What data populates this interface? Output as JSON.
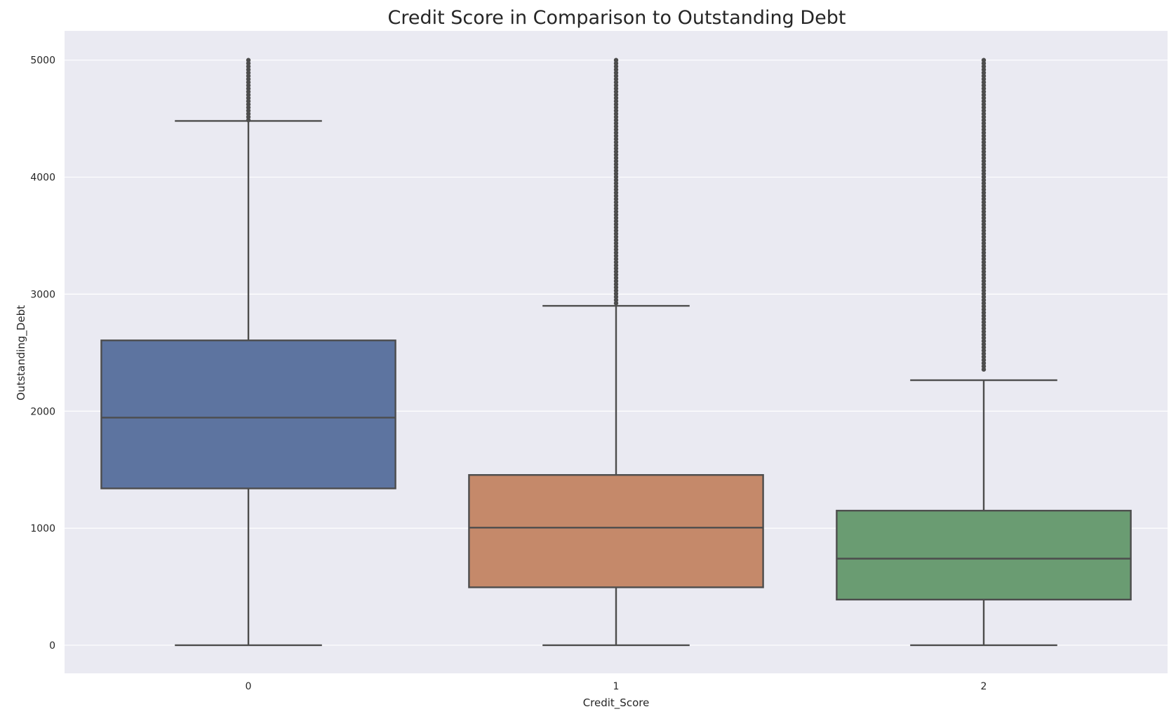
{
  "chart_data": {
    "type": "boxplot",
    "title": "Credit Score in Comparison to Outstanding Debt",
    "xlabel": "Credit_Score",
    "ylabel": "Outstanding_Debt",
    "categories": [
      "0",
      "1",
      "2"
    ],
    "ylim": [
      -240,
      5250
    ],
    "yticks": [
      0,
      1000,
      2000,
      3000,
      4000,
      5000
    ],
    "grid": true,
    "background_color": "#eaeaf2",
    "grid_color": "#ffffff",
    "line_color": "#4d4d4d",
    "boxes": [
      {
        "category": "0",
        "color": "#5d74a0",
        "whisker_low": 0,
        "q1": 1340,
        "median": 1945,
        "q3": 2605,
        "whisker_high": 4480,
        "outliers_range": [
          4480,
          5000
        ]
      },
      {
        "category": "1",
        "color": "#c5896a",
        "whisker_low": 0,
        "q1": 495,
        "median": 1005,
        "q3": 1455,
        "whisker_high": 2900,
        "outliers_range": [
          2900,
          5000
        ]
      },
      {
        "category": "2",
        "color": "#6a9c72",
        "whisker_low": 0,
        "q1": 390,
        "median": 740,
        "q3": 1150,
        "whisker_high": 2265,
        "outliers_range": [
          2340,
          5000
        ]
      }
    ]
  }
}
